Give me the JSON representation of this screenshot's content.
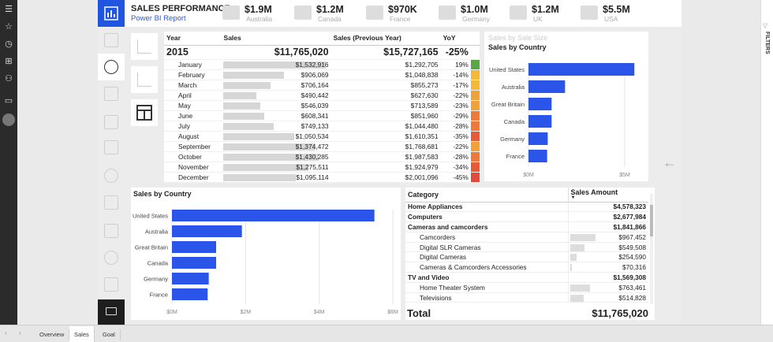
{
  "report": {
    "title": "SALES PERFORMANCE",
    "subtitle": "Power BI Report"
  },
  "kpis": [
    {
      "value": "$1.9M",
      "country": "Australia"
    },
    {
      "value": "$1.2M",
      "country": "Canada"
    },
    {
      "value": "$970K",
      "country": "France"
    },
    {
      "value": "$1.0M",
      "country": "Germany"
    },
    {
      "value": "$1.2M",
      "country": "UK"
    },
    {
      "value": "$5.5M",
      "country": "USA"
    }
  ],
  "matrix": {
    "headers": {
      "year": "Year",
      "sales": "Sales",
      "prev": "Sales (Previous Year)",
      "yoy": "YoY"
    },
    "year_row": {
      "year": "2015",
      "sales": "$11,765,020",
      "prev": "$15,727,165",
      "yoy": "-25%"
    },
    "rows": [
      {
        "month": "January",
        "sales": "$1,532,916",
        "prev": "$1,292,705",
        "yoy": "19%",
        "frac": 1.0,
        "color": "#5aa547"
      },
      {
        "month": "February",
        "sales": "$906,069",
        "prev": "$1,048,838",
        "yoy": "-14%",
        "frac": 0.59,
        "color": "#f2b93b"
      },
      {
        "month": "March",
        "sales": "$706,164",
        "prev": "$855,273",
        "yoy": "-17%",
        "frac": 0.46,
        "color": "#f2b93b"
      },
      {
        "month": "April",
        "sales": "$490,442",
        "prev": "$627,630",
        "yoy": "-22%",
        "frac": 0.32,
        "color": "#f0a23a"
      },
      {
        "month": "May",
        "sales": "$546,039",
        "prev": "$713,589",
        "yoy": "-23%",
        "frac": 0.36,
        "color": "#f0a23a"
      },
      {
        "month": "June",
        "sales": "$608,341",
        "prev": "$851,960",
        "yoy": "-29%",
        "frac": 0.4,
        "color": "#ec7a3a"
      },
      {
        "month": "July",
        "sales": "$749,133",
        "prev": "$1,044,480",
        "yoy": "-28%",
        "frac": 0.49,
        "color": "#ec7a3a"
      },
      {
        "month": "August",
        "sales": "$1,050,534",
        "prev": "$1,610,351",
        "yoy": "-35%",
        "frac": 0.69,
        "color": "#e65a3a"
      },
      {
        "month": "September",
        "sales": "$1,374,472",
        "prev": "$1,768,681",
        "yoy": "-22%",
        "frac": 0.9,
        "color": "#f0a23a"
      },
      {
        "month": "October",
        "sales": "$1,430,285",
        "prev": "$1,987,583",
        "yoy": "-28%",
        "frac": 0.93,
        "color": "#ec7a3a"
      },
      {
        "month": "November",
        "sales": "$1,275,511",
        "prev": "$1,924,979",
        "yoy": "-34%",
        "frac": 0.83,
        "color": "#e65a3a"
      },
      {
        "month": "December",
        "sales": "$1,095,114",
        "prev": "$2,001,096",
        "yoy": "-45%",
        "frac": 0.71,
        "color": "#e04a3a"
      }
    ]
  },
  "small_chart": {
    "ghost_title": "Sales by Sale Size",
    "title": "Sales by Country"
  },
  "big_chart": {
    "title": "Sales by Country"
  },
  "chart_data": [
    {
      "type": "bar",
      "orientation": "horizontal",
      "title": "Sales by Country",
      "categories": [
        "United States",
        "Australia",
        "Great Britain",
        "Canada",
        "Germany",
        "France"
      ],
      "values": [
        5.5,
        1.9,
        1.2,
        1.2,
        1.0,
        0.97
      ],
      "xticks": [
        "$0M",
        "$5M"
      ],
      "xlim": [
        0,
        5.9
      ]
    },
    {
      "type": "bar",
      "orientation": "horizontal",
      "title": "Sales by Country",
      "categories": [
        "United States",
        "Australia",
        "Great Britain",
        "Canada",
        "Germany",
        "France"
      ],
      "values": [
        5.5,
        1.9,
        1.2,
        1.2,
        1.0,
        0.97
      ],
      "xticks": [
        "$0M",
        "$2M",
        "$4M",
        "$6M"
      ],
      "xlim": [
        0,
        6
      ]
    }
  ],
  "category_table": {
    "headers": {
      "category": "Category",
      "amount": "Sales Amount"
    },
    "rows": [
      {
        "name": "Home Appliances",
        "amount": "$4,578,323",
        "bold": true
      },
      {
        "name": "Computers",
        "amount": "$2,677,984",
        "bold": true
      },
      {
        "name": "Cameras and camcorders",
        "amount": "$1,841,866",
        "bold": true
      },
      {
        "name": "Camcorders",
        "amount": "$967,452",
        "bold": false,
        "frac": 0.53
      },
      {
        "name": "Digital SLR Cameras",
        "amount": "$549,508",
        "bold": false,
        "frac": 0.3
      },
      {
        "name": "Digital Cameras",
        "amount": "$254,590",
        "bold": false,
        "frac": 0.14
      },
      {
        "name": "Cameras & Camcorders Accessories",
        "amount": "$70,316",
        "bold": false,
        "frac": 0.04
      },
      {
        "name": "TV and Video",
        "amount": "$1,569,308",
        "bold": true
      },
      {
        "name": "Home Theater System",
        "amount": "$763,461",
        "bold": false,
        "frac": 0.42
      },
      {
        "name": "Televisions",
        "amount": "$514,828",
        "bold": false,
        "frac": 0.28
      }
    ],
    "total_label": "Total",
    "total_value": "$11,765,020"
  },
  "filters_label": "FILTERS",
  "page_tabs": [
    "Overview",
    "Sales",
    "Goal"
  ],
  "accent_color": "#2b55e8"
}
